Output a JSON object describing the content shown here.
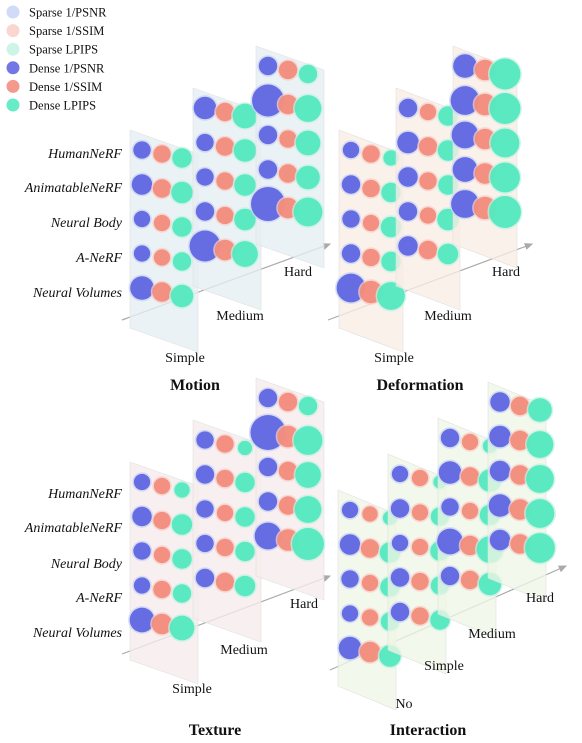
{
  "legend": [
    {
      "label": "Sparse 1/PSNR",
      "color": "#c9d3f4"
    },
    {
      "label": "Sparse 1/SSIM",
      "color": "#f8cfc8"
    },
    {
      "label": "Sparse LPIPS",
      "color": "#c6f2e3"
    },
    {
      "label": "Dense 1/PSNR",
      "color": "#5a5fe0"
    },
    {
      "label": "Dense 1/SSIM",
      "color": "#f28878"
    },
    {
      "label": "Dense LPIPS",
      "color": "#4de8bd"
    }
  ],
  "methods": [
    "HumanNeRF",
    "AnimatableNeRF",
    "Neural Body",
    "A-NeRF",
    "Neural Volumes"
  ],
  "chart_data": [
    {
      "type": "scatter",
      "title": "Motion",
      "levels": [
        "Simple",
        "Medium",
        "Hard"
      ],
      "panel_color": "#e6eef2",
      "cells": [
        [
          [
            0.9,
            0.9,
            1.1
          ],
          [
            1.2,
            1.0,
            1.3
          ],
          [
            0.8,
            0.8,
            1.1
          ],
          [
            0.8,
            0.8,
            1.0
          ],
          [
            1.5,
            1.1,
            1.4
          ]
        ],
        [
          [
            1.4,
            1.0,
            1.6
          ],
          [
            0.9,
            1.0,
            1.4
          ],
          [
            0.9,
            0.9,
            1.3
          ],
          [
            1.0,
            0.9,
            1.3
          ],
          [
            2.2,
            1.2,
            1.7
          ]
        ],
        [
          [
            1.0,
            1.0,
            1.0
          ],
          [
            2.3,
            1.1,
            1.8
          ],
          [
            1.0,
            0.9,
            1.6
          ],
          [
            1.0,
            1.0,
            1.5
          ],
          [
            2.5,
            1.2,
            2.0
          ]
        ]
      ]
    },
    {
      "type": "scatter",
      "title": "Deformation",
      "levels": [
        "Simple",
        "Medium",
        "Hard"
      ],
      "panel_color": "#f8ede5",
      "cells": [
        [
          [
            0.8,
            0.9,
            0.7
          ],
          [
            1.0,
            0.9,
            1.1
          ],
          [
            0.9,
            0.8,
            1.2
          ],
          [
            1.0,
            0.9,
            1.1
          ],
          [
            2.0,
            1.4,
            1.9
          ]
        ],
        [
          [
            1.0,
            0.8,
            1.1
          ],
          [
            1.3,
            1.0,
            1.2
          ],
          [
            1.1,
            0.9,
            1.1
          ],
          [
            1.0,
            0.8,
            1.3
          ],
          [
            1.1,
            1.0,
            1.2
          ]
        ],
        [
          [
            1.5,
            1.2,
            2.2
          ],
          [
            2.0,
            1.3,
            2.2
          ],
          [
            1.8,
            1.2,
            2.0
          ],
          [
            1.6,
            1.2,
            2.1
          ],
          [
            1.9,
            1.4,
            2.3
          ]
        ]
      ]
    },
    {
      "type": "scatter",
      "title": "Texture",
      "levels": [
        "Simple",
        "Medium",
        "Hard"
      ],
      "panel_color": "#f6ecec",
      "cells": [
        [
          [
            0.8,
            0.8,
            0.7
          ],
          [
            1.1,
            0.9,
            1.2
          ],
          [
            0.9,
            0.8,
            1.1
          ],
          [
            0.8,
            0.9,
            1.0
          ],
          [
            1.6,
            1.2,
            1.6
          ]
        ],
        [
          [
            0.9,
            0.9,
            0.6
          ],
          [
            1.0,
            0.9,
            1.1
          ],
          [
            0.9,
            0.8,
            1.1
          ],
          [
            0.9,
            0.9,
            1.1
          ],
          [
            1.0,
            1.0,
            1.2
          ]
        ],
        [
          [
            1.0,
            1.0,
            1.0
          ],
          [
            2.6,
            1.3,
            2.0
          ],
          [
            1.0,
            1.0,
            1.7
          ],
          [
            1.0,
            1.0,
            1.8
          ],
          [
            1.8,
            1.3,
            2.3
          ]
        ]
      ]
    },
    {
      "type": "scatter",
      "title": "Interaction",
      "levels": [
        "No",
        "Simple",
        "Medium",
        "Hard"
      ],
      "panel_color": "#eef6e6",
      "cells": [
        [
          [
            0.8,
            0.7,
            0.6
          ],
          [
            1.2,
            1.0,
            1.2
          ],
          [
            0.9,
            0.8,
            1.1
          ],
          [
            0.8,
            0.8,
            1.0
          ],
          [
            1.4,
            1.2,
            1.3
          ]
        ],
        [
          [
            0.8,
            0.8,
            0.5
          ],
          [
            1.0,
            0.8,
            1.0
          ],
          [
            0.8,
            0.8,
            1.1
          ],
          [
            1.0,
            0.9,
            1.0
          ],
          [
            1.0,
            0.9,
            1.1
          ]
        ],
        [
          [
            1.0,
            0.8,
            0.6
          ],
          [
            1.4,
            1.0,
            1.4
          ],
          [
            0.9,
            0.8,
            1.2
          ],
          [
            1.7,
            1.1,
            1.8
          ],
          [
            1.0,
            1.0,
            1.4
          ]
        ],
        [
          [
            1.1,
            1.0,
            1.5
          ],
          [
            1.3,
            1.1,
            1.8
          ],
          [
            1.2,
            1.1,
            1.9
          ],
          [
            1.4,
            1.2,
            2.0
          ],
          [
            1.2,
            1.1,
            2.1
          ]
        ]
      ]
    }
  ]
}
